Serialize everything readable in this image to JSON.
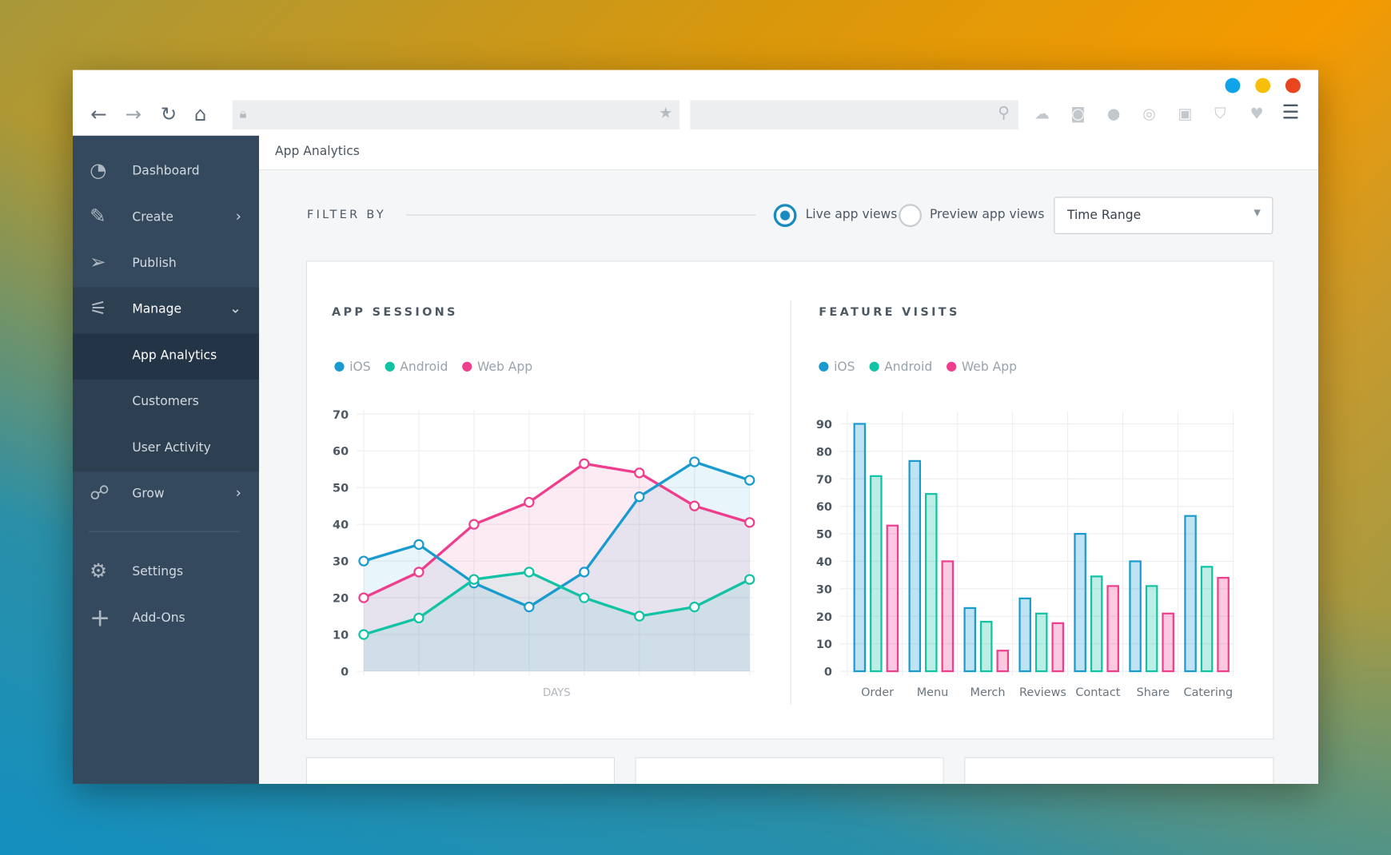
{
  "colors": {
    "ios": "#1a9bcf",
    "android": "#12c2a4",
    "web": "#ef3e8e",
    "sidebar": "#34495e"
  },
  "toolbar": {
    "icons": [
      "back-arrow-icon",
      "forward-arrow-icon",
      "reload-icon",
      "home-icon",
      "lock-icon",
      "star-icon",
      "search-icon",
      "cloud-upload-icon",
      "camera-icon",
      "alert-icon",
      "broadcast-icon",
      "briefcase-icon",
      "shield-icon",
      "heart-icon",
      "menu-icon"
    ]
  },
  "sidebar": {
    "items": [
      {
        "label": "Dashboard"
      },
      {
        "label": "Create"
      },
      {
        "label": "Publish"
      },
      {
        "label": "Manage"
      },
      {
        "label": "App Analytics"
      },
      {
        "label": "Customers"
      },
      {
        "label": "User Activity"
      },
      {
        "label": "Grow"
      },
      {
        "label": "Settings"
      },
      {
        "label": "Add-Ons"
      }
    ]
  },
  "breadcrumb": "App Analytics",
  "filter": {
    "label": "FILTER BY",
    "option_live": "Live app views",
    "option_preview": "Preview app views",
    "selected": "live",
    "time_range": "Time Range"
  },
  "legend": {
    "ios": "iOS",
    "android": "Android",
    "web": "Web App"
  },
  "chart_data": [
    {
      "type": "area",
      "title": "APP SESSIONS",
      "xlabel": "DAYS",
      "ylim": [
        0,
        70
      ],
      "yticks": [
        0,
        10,
        20,
        30,
        40,
        50,
        60,
        70
      ],
      "grid": true,
      "legend": "top-left",
      "series": [
        {
          "name": "iOS",
          "values": [
            30,
            34.5,
            24,
            17.5,
            27,
            47.5,
            57,
            52
          ]
        },
        {
          "name": "Android",
          "values": [
            10,
            14.5,
            25,
            27,
            20,
            15,
            17.5,
            25
          ]
        },
        {
          "name": "Web App",
          "values": [
            20,
            27,
            40,
            46,
            56.5,
            54,
            45,
            40.5
          ]
        }
      ]
    },
    {
      "type": "bar",
      "title": "FEATURE VISITS",
      "ylim": [
        0,
        90
      ],
      "yticks": [
        0,
        10,
        20,
        30,
        40,
        50,
        60,
        70,
        80,
        90
      ],
      "grid": true,
      "legend": "top-left",
      "categories": [
        "Order",
        "Menu",
        "Merch",
        "Reviews",
        "Contact",
        "Share",
        "Catering"
      ],
      "series": [
        {
          "name": "iOS",
          "values": [
            90,
            76.5,
            23,
            26.5,
            50,
            40,
            56.5
          ]
        },
        {
          "name": "Android",
          "values": [
            71,
            64.5,
            18,
            21,
            34.5,
            31,
            38
          ]
        },
        {
          "name": "Web App",
          "values": [
            53,
            40,
            7.5,
            17.5,
            31,
            21,
            34
          ]
        }
      ]
    }
  ]
}
